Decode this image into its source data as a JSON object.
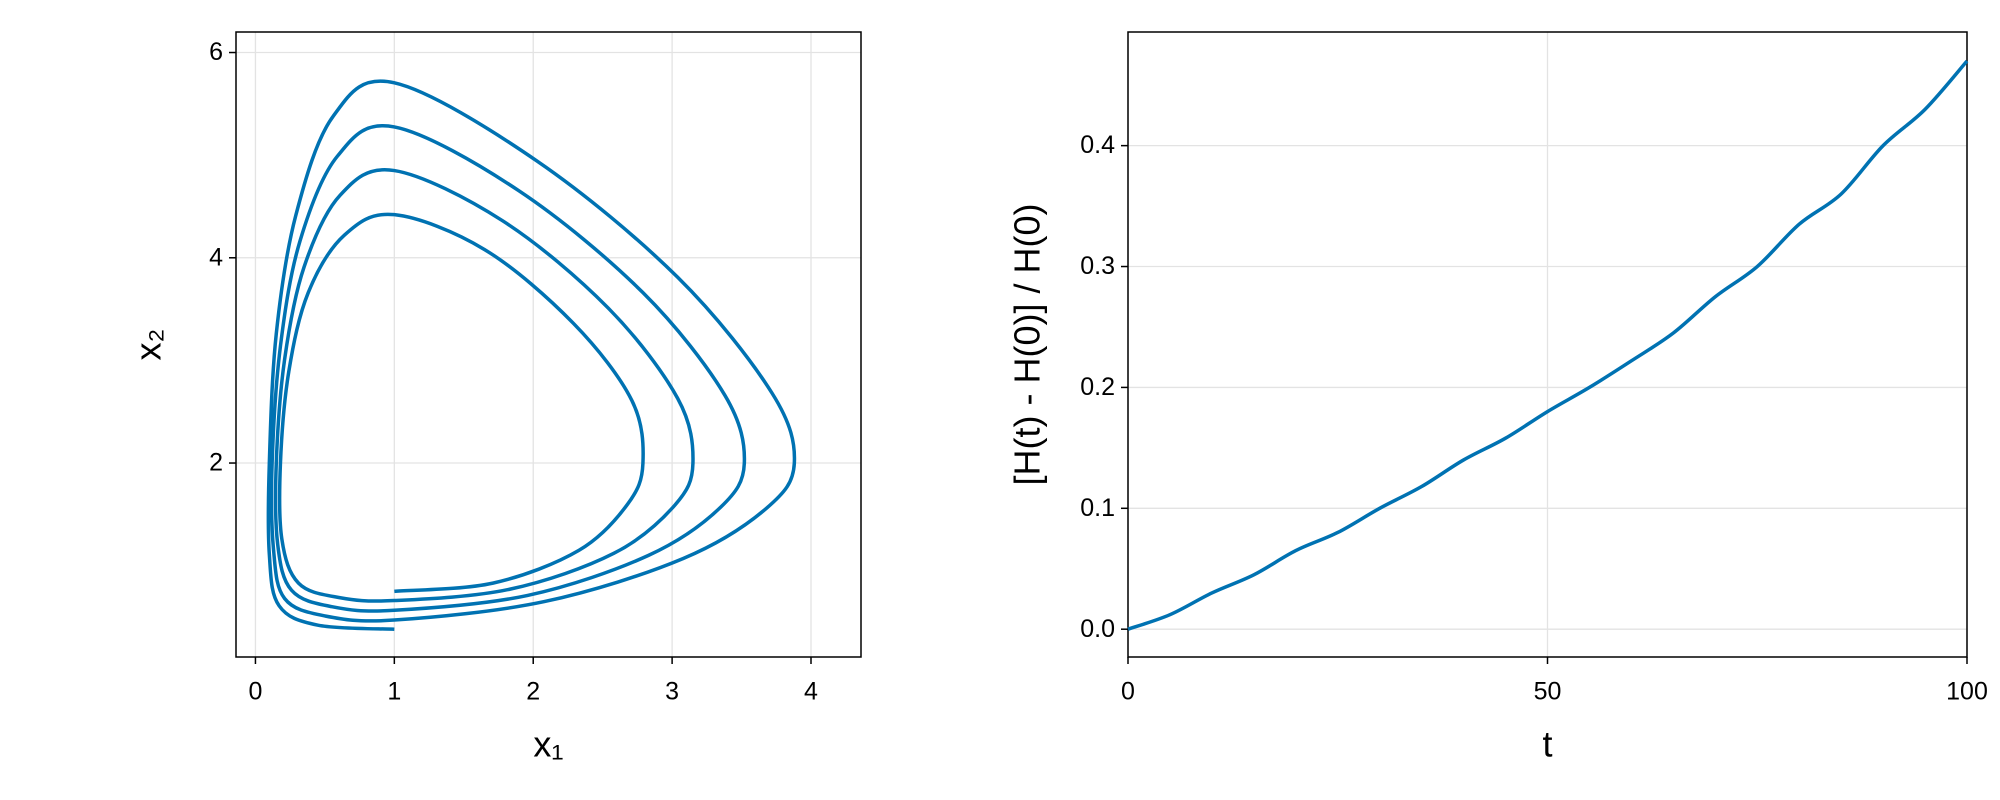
{
  "chart_data": [
    {
      "type": "line",
      "xlabel": "x₁",
      "ylabel": "x₂",
      "xlim": [
        -0.14,
        4.36
      ],
      "ylim": [
        0.11,
        6.2
      ],
      "xticks": [
        0,
        1,
        2,
        3,
        4
      ],
      "yticks": [
        2,
        4,
        6
      ],
      "grid": true,
      "series": [
        {
          "color": "#0072b2",
          "x": [
            1,
            1.71,
            2.33,
            2.68,
            2.79,
            2.71,
            2.29,
            1.65,
            1,
            0.64,
            0.38,
            0.24,
            0.18,
            0.19,
            0.31,
            0.6,
            1,
            1.83,
            2.58,
            3.02,
            3.15,
            3.04,
            2.54,
            1.78,
            1,
            0.61,
            0.35,
            0.21,
            0.15,
            0.16,
            0.26,
            0.55,
            1,
            1.96,
            2.83,
            3.35,
            3.52,
            3.38,
            2.79,
            1.9,
            1,
            0.59,
            0.32,
            0.18,
            0.12,
            0.13,
            0.21,
            0.5,
            1,
            2.08,
            3.08,
            3.68,
            3.88,
            3.72,
            3.04,
            2.03,
            1,
            0.56,
            0.29,
            0.15,
            0.1,
            0.1,
            0.17,
            0.45,
            1
          ],
          "y": [
            0.75,
            0.83,
            1.15,
            1.6,
            2,
            2.61,
            3.36,
            4.08,
            4.42,
            4.22,
            3.66,
            2.89,
            2,
            1.26,
            0.83,
            0.69,
            0.66,
            0.77,
            1.12,
            1.59,
            2,
            2.63,
            3.51,
            4.36,
            4.85,
            4.61,
            3.91,
            3.01,
            2,
            1.21,
            0.76,
            0.6,
            0.565,
            0.71,
            1.1,
            1.57,
            2,
            2.66,
            3.66,
            4.65,
            5.275,
            4.99,
            4.16,
            3.14,
            2,
            1.16,
            0.68,
            0.51,
            0.47,
            0.65,
            1.07,
            1.56,
            2,
            2.68,
            3.81,
            4.94,
            5.705,
            5.38,
            4.41,
            3.26,
            2,
            1.11,
            0.61,
            0.42,
            0.38
          ]
        }
      ]
    },
    {
      "type": "line",
      "xlabel": "t",
      "ylabel": "[H(t) - H(0)] / H(0)",
      "xlim": [
        0,
        100
      ],
      "ylim": [
        -0.023,
        0.494
      ],
      "xticks": [
        0,
        50,
        100
      ],
      "yticks": [
        {
          "value": 0,
          "label": "0.0"
        },
        0.1,
        0.2,
        0.3,
        0.4
      ],
      "grid": true,
      "series": [
        {
          "color": "#0072b2",
          "x": [
            0,
            5,
            10,
            15,
            20,
            25,
            30,
            35,
            40,
            45,
            50,
            55,
            60,
            65,
            70,
            75,
            80,
            85,
            90,
            95,
            100
          ],
          "y": [
            0,
            0.012,
            0.03,
            0.045,
            0.065,
            0.08,
            0.1,
            0.118,
            0.14,
            0.158,
            0.18,
            0.2,
            0.222,
            0.245,
            0.275,
            0.3,
            0.335,
            0.36,
            0.4,
            0.43,
            0.47
          ]
        }
      ]
    }
  ]
}
